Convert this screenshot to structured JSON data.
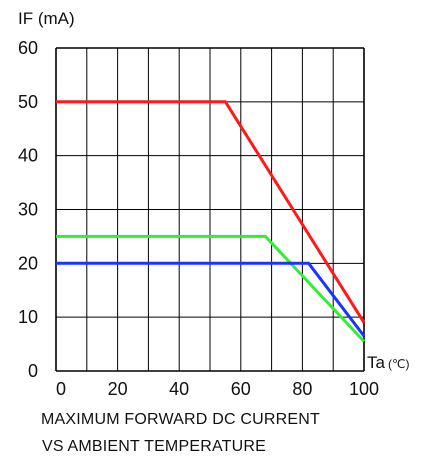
{
  "chart_data": {
    "type": "line",
    "title_lines": [
      "MAXIMUM FORWARD DC CURRENT",
      "VS AMBIENT TEMPERATURE"
    ],
    "ylabel": "IF (mA)",
    "xlabel": "Ta",
    "xlabel_unit": "(℃)",
    "xlim": [
      0,
      100
    ],
    "ylim": [
      0,
      60
    ],
    "xticks": [
      0,
      20,
      40,
      60,
      80,
      100
    ],
    "yticks": [
      0,
      10,
      20,
      30,
      40,
      50,
      60
    ],
    "grid": true,
    "series": [
      {
        "color": "#ff1a1a",
        "points": [
          [
            0,
            50
          ],
          [
            55,
            50
          ],
          [
            100,
            9
          ]
        ]
      },
      {
        "color": "#33ee33",
        "points": [
          [
            0,
            25
          ],
          [
            68,
            25
          ],
          [
            100,
            5.5
          ]
        ]
      },
      {
        "color": "#1a33ff",
        "points": [
          [
            0,
            20
          ],
          [
            82,
            20
          ],
          [
            100,
            6.5
          ]
        ]
      }
    ]
  }
}
